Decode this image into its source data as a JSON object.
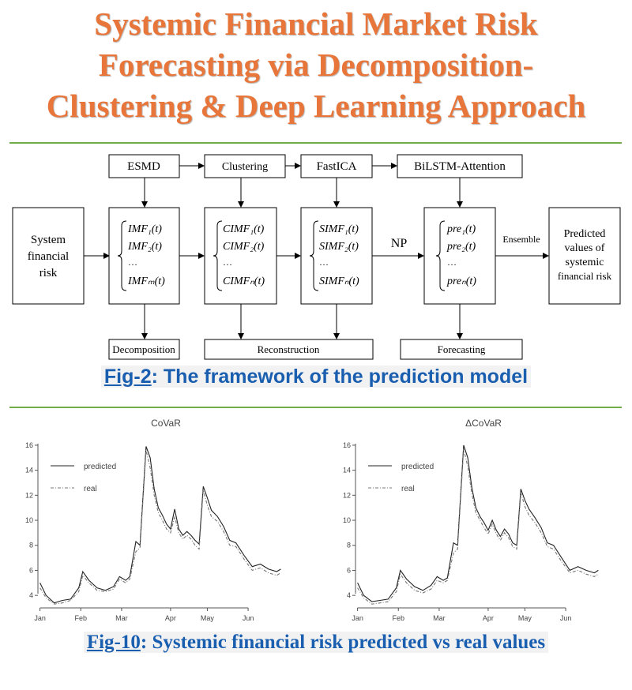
{
  "title": {
    "line1": "Systemic Financial Market Risk",
    "line2": "Forecasting via Decomposition-",
    "line3": "Clustering & Deep Learning Approach"
  },
  "framework": {
    "top_boxes": [
      "ESMD",
      "Clustering",
      "FastICA",
      "BiLSTM-Attention"
    ],
    "input_box": [
      "System",
      "financial",
      "risk"
    ],
    "imf_box": [
      "IMF₁(t)",
      "IMF₂(t)",
      "…",
      "IMFₘ(t)"
    ],
    "cimf_box": [
      "CIMF₁(t)",
      "CIMF₂(t)",
      "…",
      "CIMFₙ(t)"
    ],
    "simf_box": [
      "SIMF₁(t)",
      "SIMF₂(t)",
      "…",
      "SIMFₙ(t)"
    ],
    "pre_box": [
      "pre₁(t)",
      "pre₂(t)",
      "…",
      "preₙ(t)"
    ],
    "np_label": "NP",
    "ensemble_label": "Ensemble",
    "output_box": [
      "Predicted",
      "values of",
      "systemic",
      "financial risk"
    ],
    "bottom_boxes": [
      "Decomposition",
      "Reconstruction",
      "Forecasting"
    ]
  },
  "caption1": {
    "fig": "Fig-2",
    "text": ": The framework of the prediction model"
  },
  "caption2": {
    "fig": "Fig-10",
    "text": ": Systemic financial risk predicted vs real values"
  },
  "chart_data": [
    {
      "type": "line",
      "title": "CoVaR",
      "x_ticks": [
        "Jan",
        "Feb",
        "Mar",
        "Apr",
        "May",
        "Jun"
      ],
      "x_tick_pos": [
        0,
        1,
        2,
        3.2,
        4.1,
        5.1
      ],
      "x_range": [
        -0.05,
        5.95
      ],
      "ylim": [
        3,
        16.5
      ],
      "y_ticks": [
        4,
        6,
        8,
        10,
        12,
        14,
        16
      ],
      "legend": [
        "predicted",
        "real"
      ],
      "series": [
        {
          "name": "predicted",
          "x": [
            0,
            0.15,
            0.35,
            0.55,
            0.75,
            0.95,
            1.05,
            1.2,
            1.4,
            1.6,
            1.8,
            1.95,
            2.1,
            2.2,
            2.35,
            2.45,
            2.6,
            2.7,
            2.8,
            2.9,
            3.0,
            3.1,
            3.2,
            3.3,
            3.4,
            3.5,
            3.6,
            3.7,
            3.8,
            3.9,
            4.0,
            4.1,
            4.2,
            4.35,
            4.5,
            4.65,
            4.8,
            5.0,
            5.2,
            5.4,
            5.6,
            5.8,
            5.9
          ],
          "values": [
            5.0,
            4.0,
            3.4,
            3.6,
            3.7,
            4.6,
            5.9,
            5.2,
            4.6,
            4.4,
            4.7,
            5.5,
            5.2,
            5.5,
            8.3,
            8.0,
            15.9,
            15.0,
            12.5,
            11.0,
            10.4,
            9.7,
            9.3,
            10.9,
            9.3,
            8.8,
            9.1,
            8.8,
            8.4,
            8.1,
            12.7,
            11.8,
            10.8,
            10.3,
            9.5,
            8.4,
            8.2,
            7.2,
            6.3,
            6.5,
            6.1,
            5.9,
            6.1
          ]
        },
        {
          "name": "real",
          "x": [
            0,
            0.15,
            0.35,
            0.55,
            0.75,
            0.95,
            1.05,
            1.2,
            1.4,
            1.6,
            1.8,
            1.95,
            2.1,
            2.2,
            2.35,
            2.45,
            2.6,
            2.7,
            2.8,
            2.9,
            3.0,
            3.1,
            3.2,
            3.3,
            3.4,
            3.5,
            3.6,
            3.7,
            3.8,
            3.9,
            4.0,
            4.1,
            4.2,
            4.35,
            4.5,
            4.65,
            4.8,
            5.0,
            5.2,
            5.4,
            5.6,
            5.8,
            5.9
          ],
          "values": [
            4.6,
            3.8,
            3.3,
            3.4,
            3.6,
            4.3,
            5.6,
            5.0,
            4.4,
            4.3,
            4.5,
            5.3,
            5.0,
            5.3,
            7.5,
            7.8,
            15.6,
            14.2,
            12.0,
            10.6,
            10.0,
            9.3,
            9.0,
            10.3,
            9.0,
            8.5,
            8.8,
            8.5,
            8.0,
            7.7,
            12.4,
            11.2,
            10.3,
            9.9,
            9.1,
            8.0,
            7.9,
            6.9,
            6.0,
            6.2,
            5.8,
            5.6,
            5.8
          ]
        }
      ]
    },
    {
      "type": "line",
      "title": "ΔCoVaR",
      "x_ticks": [
        "Jan",
        "Feb",
        "Mar",
        "Apr",
        "May",
        "Jun"
      ],
      "x_tick_pos": [
        0,
        1,
        2,
        3.2,
        4.1,
        5.1
      ],
      "x_range": [
        -0.05,
        5.95
      ],
      "ylim": [
        3,
        16.5
      ],
      "y_ticks": [
        4,
        6,
        8,
        10,
        12,
        14,
        16
      ],
      "legend": [
        "predicted",
        "real"
      ],
      "series": [
        {
          "name": "predicted",
          "x": [
            0,
            0.15,
            0.35,
            0.55,
            0.75,
            0.95,
            1.05,
            1.2,
            1.4,
            1.6,
            1.8,
            1.95,
            2.1,
            2.2,
            2.35,
            2.45,
            2.6,
            2.7,
            2.8,
            2.9,
            3.0,
            3.1,
            3.2,
            3.3,
            3.4,
            3.5,
            3.6,
            3.7,
            3.8,
            3.9,
            4.0,
            4.1,
            4.2,
            4.35,
            4.5,
            4.65,
            4.8,
            5.0,
            5.2,
            5.4,
            5.6,
            5.8,
            5.9
          ],
          "values": [
            5.0,
            4.0,
            3.5,
            3.6,
            3.7,
            4.6,
            6.0,
            5.3,
            4.7,
            4.4,
            4.8,
            5.5,
            5.2,
            5.4,
            8.2,
            8.0,
            16.0,
            15.0,
            12.6,
            11.0,
            10.3,
            9.8,
            9.2,
            10.0,
            9.2,
            8.7,
            9.3,
            8.9,
            8.2,
            8.0,
            12.5,
            11.6,
            10.9,
            10.2,
            9.4,
            8.2,
            8.0,
            7.0,
            6.0,
            6.3,
            6.0,
            5.8,
            6.0
          ]
        },
        {
          "name": "real",
          "x": [
            0,
            0.15,
            0.35,
            0.55,
            0.75,
            0.95,
            1.05,
            1.2,
            1.4,
            1.6,
            1.8,
            1.95,
            2.1,
            2.2,
            2.35,
            2.45,
            2.6,
            2.7,
            2.8,
            2.9,
            3.0,
            3.1,
            3.2,
            3.3,
            3.4,
            3.5,
            3.6,
            3.7,
            3.8,
            3.9,
            4.0,
            4.1,
            4.2,
            4.35,
            4.5,
            4.65,
            4.8,
            5.0,
            5.2,
            5.4,
            5.6,
            5.8,
            5.9
          ],
          "values": [
            4.6,
            3.8,
            3.3,
            3.4,
            3.5,
            4.3,
            5.7,
            5.0,
            4.4,
            4.2,
            4.5,
            5.2,
            5.0,
            5.2,
            7.4,
            7.7,
            15.7,
            14.3,
            12.1,
            10.6,
            10.0,
            9.4,
            8.9,
            9.7,
            8.9,
            8.4,
            9.0,
            8.6,
            7.9,
            7.7,
            12.2,
            11.1,
            10.4,
            9.8,
            9.0,
            7.9,
            7.7,
            6.7,
            5.8,
            6.0,
            5.7,
            5.5,
            5.7
          ]
        }
      ]
    }
  ],
  "colors": {
    "title": "#e8763a",
    "caption": "#1a5eb0",
    "rule": "#70ad47"
  }
}
